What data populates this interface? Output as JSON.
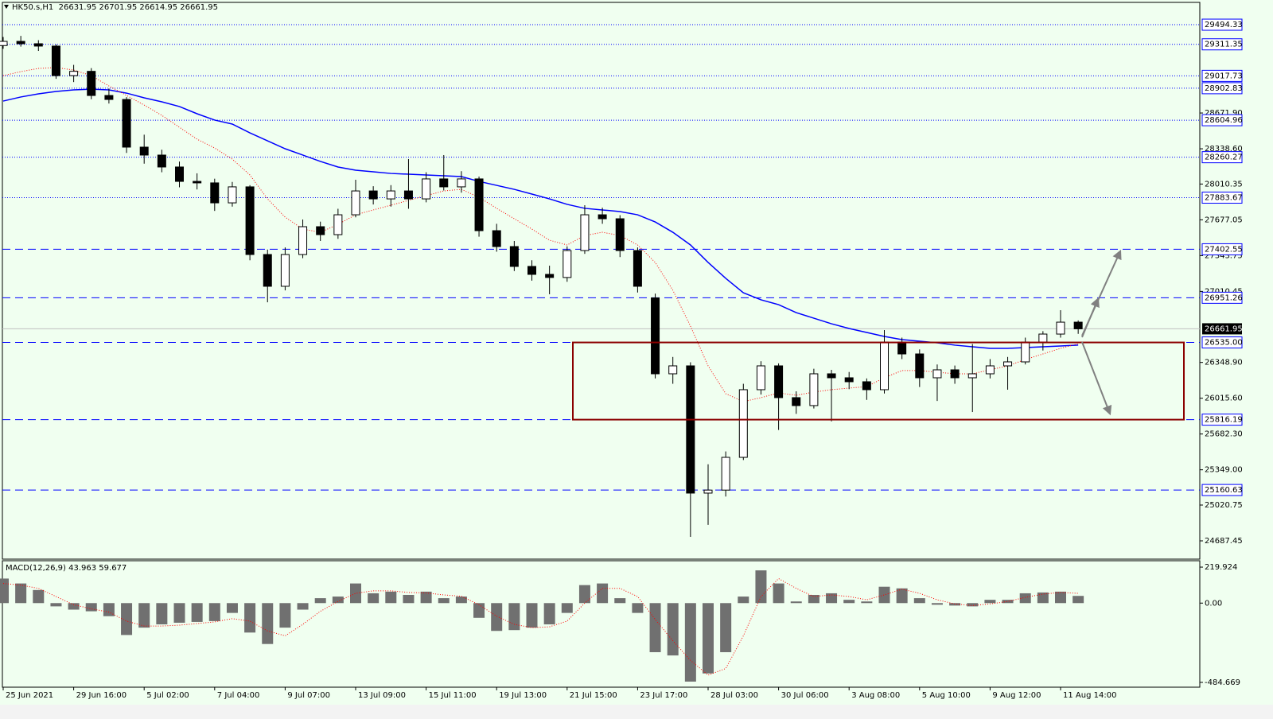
{
  "chart_data": [
    {
      "type": "candlestick",
      "title": "HK50.s,H1  26631.95 26701.95 26614.95 26661.95",
      "categories": [
        "25 Jun 2021",
        null,
        null,
        null,
        "29 Jun 16:00",
        null,
        null,
        null,
        "5 Jul 02:00",
        null,
        null,
        null,
        "7 Jul 04:00",
        null,
        null,
        null,
        "9 Jul 07:00",
        null,
        null,
        null,
        "13 Jul 09:00",
        null,
        null,
        null,
        "15 Jul 11:00",
        null,
        null,
        null,
        "19 Jul 13:00",
        null,
        null,
        null,
        "21 Jul 15:00",
        null,
        null,
        null,
        "23 Jul 17:00",
        null,
        null,
        null,
        "28 Jul 03:00",
        null,
        null,
        null,
        "30 Jul 06:00",
        null,
        null,
        null,
        "3 Aug 08:00",
        null,
        null,
        null,
        "5 Aug 10:00",
        null,
        null,
        null,
        "9 Aug 12:00",
        null,
        null,
        null,
        "11 Aug 14:00",
        null
      ],
      "open": [
        29300,
        29339,
        29317,
        29295,
        29020,
        29060,
        28835,
        28798,
        28354,
        28280,
        28169,
        28035,
        28021,
        27835,
        27984,
        27354,
        27058,
        27354,
        27613,
        27539,
        27724,
        27946,
        27872,
        27946,
        27872,
        28058,
        27984,
        28058,
        27576,
        27428,
        27243,
        27169,
        27140,
        27391,
        27724,
        27687,
        27391,
        26950,
        26243,
        26317,
        25132,
        25160,
        25465,
        26095,
        26317,
        26021,
        25947,
        26243,
        26206,
        26169,
        26095,
        26539,
        26428,
        26206,
        26280,
        26206,
        26243,
        26317,
        26354,
        26539,
        26613,
        26724
      ],
      "high": [
        29380,
        29390,
        29350,
        29310,
        29120,
        29090,
        28900,
        28820,
        28470,
        28330,
        28220,
        28110,
        28060,
        28030,
        28000,
        27400,
        27420,
        27680,
        27660,
        27780,
        28050,
        27990,
        28000,
        28243,
        28120,
        28280,
        28130,
        28080,
        27640,
        27480,
        27300,
        27250,
        27430,
        27813,
        27790,
        27720,
        27420,
        26990,
        26400,
        26350,
        25400,
        25520,
        26150,
        26360,
        26340,
        26080,
        26290,
        26280,
        26260,
        26200,
        26650,
        26580,
        26470,
        26330,
        26320,
        26520,
        26380,
        26400,
        26580,
        26640,
        26835,
        26740
      ],
      "low": [
        29270,
        29290,
        29250,
        28990,
        28960,
        28800,
        28760,
        28300,
        28200,
        28120,
        27980,
        27960,
        27760,
        27800,
        27300,
        26909,
        27020,
        27320,
        27480,
        27500,
        27700,
        27820,
        27800,
        27780,
        27840,
        27950,
        27930,
        27520,
        27380,
        27200,
        27110,
        26984,
        27100,
        27360,
        27640,
        27330,
        27000,
        26200,
        26150,
        24724,
        24836,
        25100,
        25440,
        26050,
        25720,
        25870,
        25920,
        25800,
        26100,
        26000,
        26060,
        26380,
        26120,
        25990,
        26150,
        25887,
        26200,
        26095,
        26330,
        26460,
        26580,
        26614.95
      ],
      "close": [
        29339,
        29317,
        29295,
        29020,
        29060,
        28835,
        28798,
        28354,
        28280,
        28169,
        28035,
        28021,
        27835,
        27984,
        27354,
        27058,
        27354,
        27613,
        27539,
        27724,
        27946,
        27872,
        27946,
        27872,
        28058,
        27984,
        28058,
        27576,
        27428,
        27243,
        27169,
        27140,
        27391,
        27724,
        27687,
        27391,
        27058,
        26243,
        26317,
        25132,
        25160,
        25465,
        26095,
        26317,
        26021,
        25947,
        26243,
        26206,
        26169,
        26095,
        26539,
        26428,
        26206,
        26280,
        26206,
        26243,
        26317,
        26354,
        26539,
        26613,
        26724,
        26661.95
      ],
      "up_color": "#ffffff",
      "down_color": "#000000",
      "lines": [
        {
          "color": "#0000ff",
          "style": "solid",
          "values": [
            28783,
            28821,
            28850,
            28872,
            28887,
            28894,
            28887,
            28857,
            28813,
            28776,
            28732,
            28665,
            28606,
            28569,
            28487,
            28413,
            28339,
            28280,
            28221,
            28169,
            28139,
            28124,
            28109,
            28102,
            28095,
            28087,
            28080,
            28035,
            27998,
            27961,
            27917,
            27872,
            27821,
            27784,
            27769,
            27754,
            27724,
            27657,
            27561,
            27443,
            27280,
            27132,
            26998,
            26932,
            26887,
            26813,
            26761,
            26709,
            26665,
            26628,
            26591,
            26561,
            26547,
            26532,
            26510,
            26495,
            26480,
            26480,
            26487,
            26495,
            26502,
            26510
          ]
        },
        {
          "color": "#ff0000",
          "style": "dotted",
          "values": [
            29020,
            29057,
            29087,
            29095,
            29072,
            29020,
            28924,
            28835,
            28746,
            28650,
            28539,
            28428,
            28346,
            28242,
            28095,
            27872,
            27702,
            27591,
            27561,
            27635,
            27724,
            27769,
            27813,
            27858,
            27902,
            27946,
            27961,
            27887,
            27784,
            27687,
            27591,
            27487,
            27443,
            27531,
            27561,
            27531,
            27443,
            27280,
            27021,
            26687,
            26317,
            26058,
            25984,
            26021,
            26065,
            26043,
            26073,
            26095,
            26110,
            26124,
            26206,
            26273,
            26273,
            26258,
            26243,
            26243,
            26280,
            26317,
            26376,
            26428,
            26480,
            26524
          ]
        }
      ],
      "ylim": [
        24517,
        29702
      ],
      "yticks": [
        {
          "value": 28671.9,
          "label": "28671.90"
        },
        {
          "value": 28338.6,
          "label": "28338.60"
        },
        28010.35,
        27677.05,
        27343.75,
        27010.45,
        {
          "value": 26348.9,
          "label": "26348.90"
        },
        {
          "value": 26015.6,
          "label": "26015.60"
        },
        {
          "value": 25682.3,
          "label": "25682.30"
        },
        {
          "value": 25349,
          "label": "25349.00"
        },
        25020.75,
        24687.45
      ],
      "levels": [
        {
          "value": 29494.33,
          "style": "dotted"
        },
        {
          "value": 29311.35,
          "style": "dotted"
        },
        {
          "value": 29017.73,
          "style": "dotted"
        },
        {
          "value": 28902.83,
          "style": "dotted"
        },
        {
          "value": 28604.96,
          "style": "dotted"
        },
        {
          "value": 28260.27,
          "style": "dotted"
        },
        {
          "value": 27883.67,
          "style": "dotted"
        },
        {
          "value": 27402.55,
          "style": "dashed"
        },
        {
          "value": 26951.26,
          "style": "dashed"
        },
        {
          "value": 26535,
          "label": "26535.00",
          "style": "dashed"
        },
        {
          "value": 25816.19,
          "style": "dashed"
        },
        {
          "value": 25160.63,
          "style": "dashed"
        }
      ],
      "level_color": "#0000ff",
      "last_price": 26661.95
    },
    {
      "type": "macd",
      "title": "MACD(12,26,9) 43.963 59.677",
      "histogram": {
        "color": "#707070",
        "values": [
          150,
          120,
          80,
          -20,
          -40,
          -50,
          -80,
          -195,
          -150,
          -130,
          -120,
          -115,
          -110,
          -60,
          -180,
          -250,
          -150,
          -40,
          30,
          40,
          120,
          60,
          70,
          50,
          70,
          30,
          40,
          -90,
          -170,
          -165,
          -150,
          -130,
          -60,
          110,
          120,
          30,
          -60,
          -300,
          -320,
          -480,
          -430,
          -300,
          40,
          200,
          120,
          10,
          50,
          60,
          20,
          10,
          100,
          90,
          30,
          -10,
          -15,
          -20,
          20,
          20,
          60,
          65,
          70,
          43.963
        ]
      },
      "signal": {
        "color": "#ff0000",
        "style": "dotted",
        "values": [
          120,
          110,
          90,
          40,
          -10,
          -35,
          -55,
          -110,
          -140,
          -140,
          -135,
          -125,
          -115,
          -95,
          -110,
          -170,
          -200,
          -130,
          -50,
          10,
          60,
          75,
          75,
          65,
          62,
          50,
          42,
          -10,
          -80,
          -130,
          -150,
          -145,
          -110,
          0,
          90,
          90,
          40,
          -100,
          -230,
          -350,
          -440,
          -400,
          -200,
          40,
          150,
          90,
          40,
          50,
          40,
          20,
          50,
          85,
          60,
          20,
          -5,
          -15,
          -5,
          10,
          35,
          55,
          65,
          59.677
        ]
      },
      "ylim": [
        -514,
        259
      ],
      "yticks": [
        219.924,
        {
          "value": 0,
          "label": "0.00"
        },
        -484.669
      ]
    }
  ]
}
